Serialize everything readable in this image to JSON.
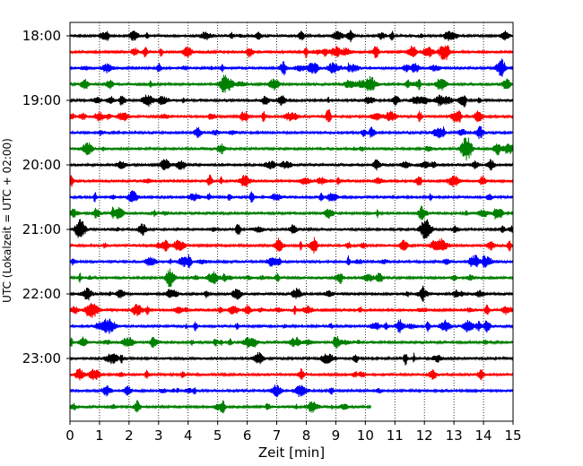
{
  "chart_data": {
    "type": "line",
    "title": "",
    "xlabel": "Zeit  [min]",
    "ylabel": "UTC (Lokalzeit = UTC + 02:00)",
    "xlim": [
      0,
      15
    ],
    "x_ticks": [
      "0",
      "1",
      "2",
      "3",
      "4",
      "5",
      "6",
      "7",
      "8",
      "9",
      "10",
      "11",
      "12",
      "13",
      "14",
      "15"
    ],
    "y_ticks": [
      "18:00",
      "19:00",
      "20:00",
      "21:00",
      "22:00",
      "23:00"
    ],
    "grid": {
      "x": true,
      "y": false,
      "style": "dotted"
    },
    "trace_interval_min": 15,
    "trace_colors": [
      "#000000",
      "#ff0000",
      "#0000ff",
      "#008000"
    ],
    "traces": [
      {
        "start": "18:00",
        "end_min": 15
      },
      {
        "start": "18:15",
        "end_min": 15
      },
      {
        "start": "18:30",
        "end_min": 15
      },
      {
        "start": "18:45",
        "end_min": 15
      },
      {
        "start": "19:00",
        "end_min": 15
      },
      {
        "start": "19:15",
        "end_min": 15
      },
      {
        "start": "19:30",
        "end_min": 15
      },
      {
        "start": "19:45",
        "end_min": 15
      },
      {
        "start": "20:00",
        "end_min": 15
      },
      {
        "start": "20:15",
        "end_min": 15
      },
      {
        "start": "20:30",
        "end_min": 15
      },
      {
        "start": "20:45",
        "end_min": 15
      },
      {
        "start": "21:00",
        "end_min": 15
      },
      {
        "start": "21:15",
        "end_min": 15
      },
      {
        "start": "21:30",
        "end_min": 15
      },
      {
        "start": "21:45",
        "end_min": 15
      },
      {
        "start": "22:00",
        "end_min": 15
      },
      {
        "start": "22:15",
        "end_min": 15
      },
      {
        "start": "22:30",
        "end_min": 15
      },
      {
        "start": "22:45",
        "end_min": 15
      },
      {
        "start": "23:00",
        "end_min": 15
      },
      {
        "start": "23:15",
        "end_min": 15
      },
      {
        "start": "23:30",
        "end_min": 15
      },
      {
        "start": "23:45",
        "end_min": 10.2
      }
    ]
  }
}
